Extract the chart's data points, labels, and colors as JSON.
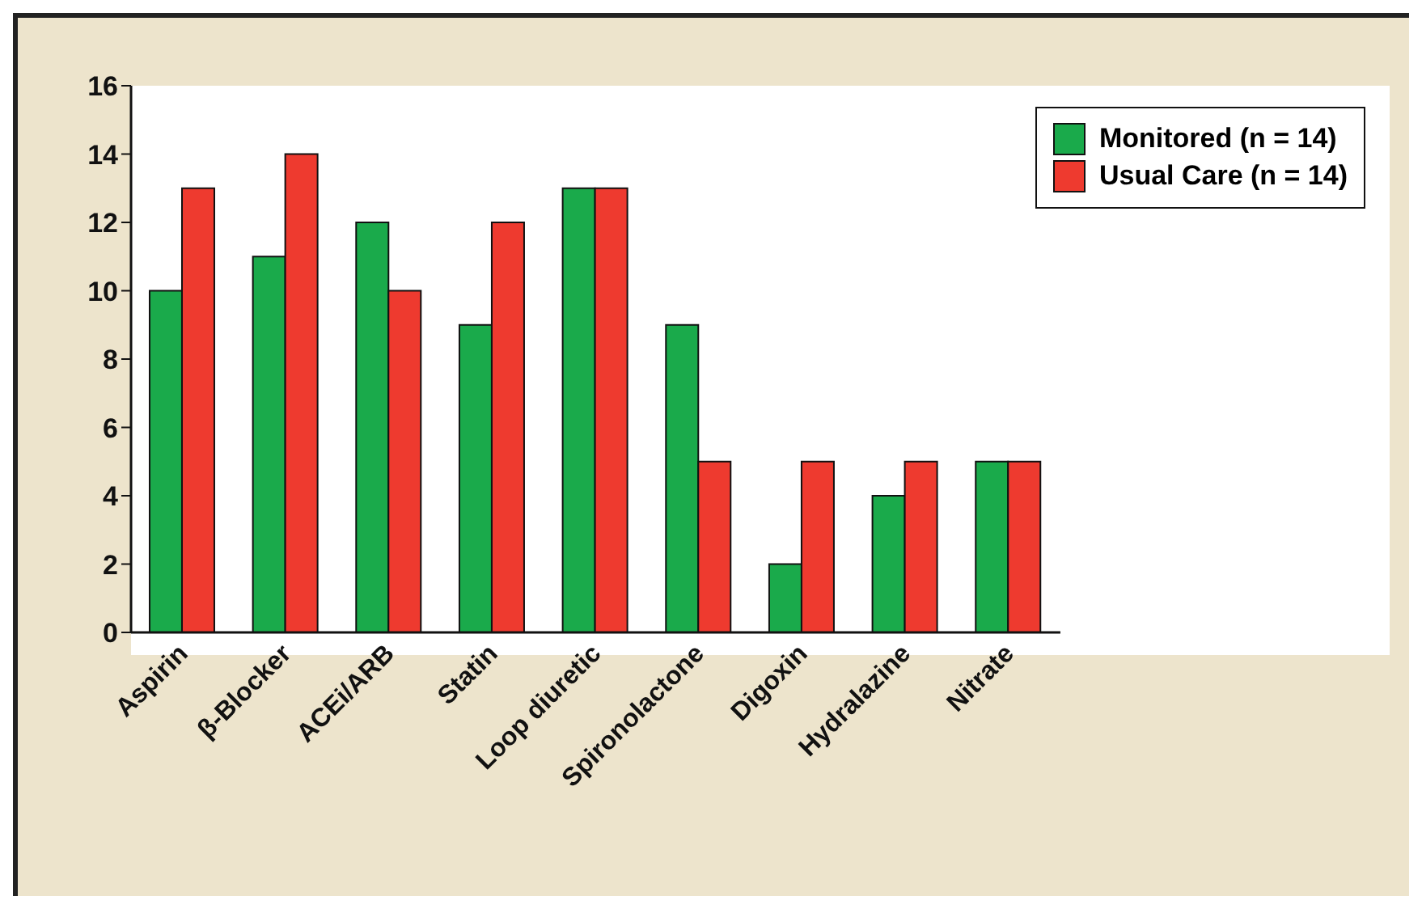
{
  "chart_data": {
    "type": "bar",
    "categories": [
      "Aspirin",
      "β-Blocker",
      "ACEi/ARB",
      "Statin",
      "Loop diuretic",
      "Spironolactone",
      "Digoxin",
      "Hydralazine",
      "Nitrate"
    ],
    "series": [
      {
        "name": "Monitored (n = 14)",
        "color": "#1aaa4b",
        "values": [
          10,
          11,
          12,
          9,
          13,
          9,
          2,
          4,
          5
        ]
      },
      {
        "name": "Usual Care (n = 14)",
        "color": "#ee3a2f",
        "values": [
          13,
          14,
          10,
          12,
          13,
          5,
          5,
          5,
          5
        ]
      }
    ],
    "ylim": [
      0,
      16
    ],
    "yticks": [
      0,
      2,
      4,
      6,
      8,
      10,
      12,
      14,
      16
    ],
    "grid": false,
    "legend": "top right"
  }
}
